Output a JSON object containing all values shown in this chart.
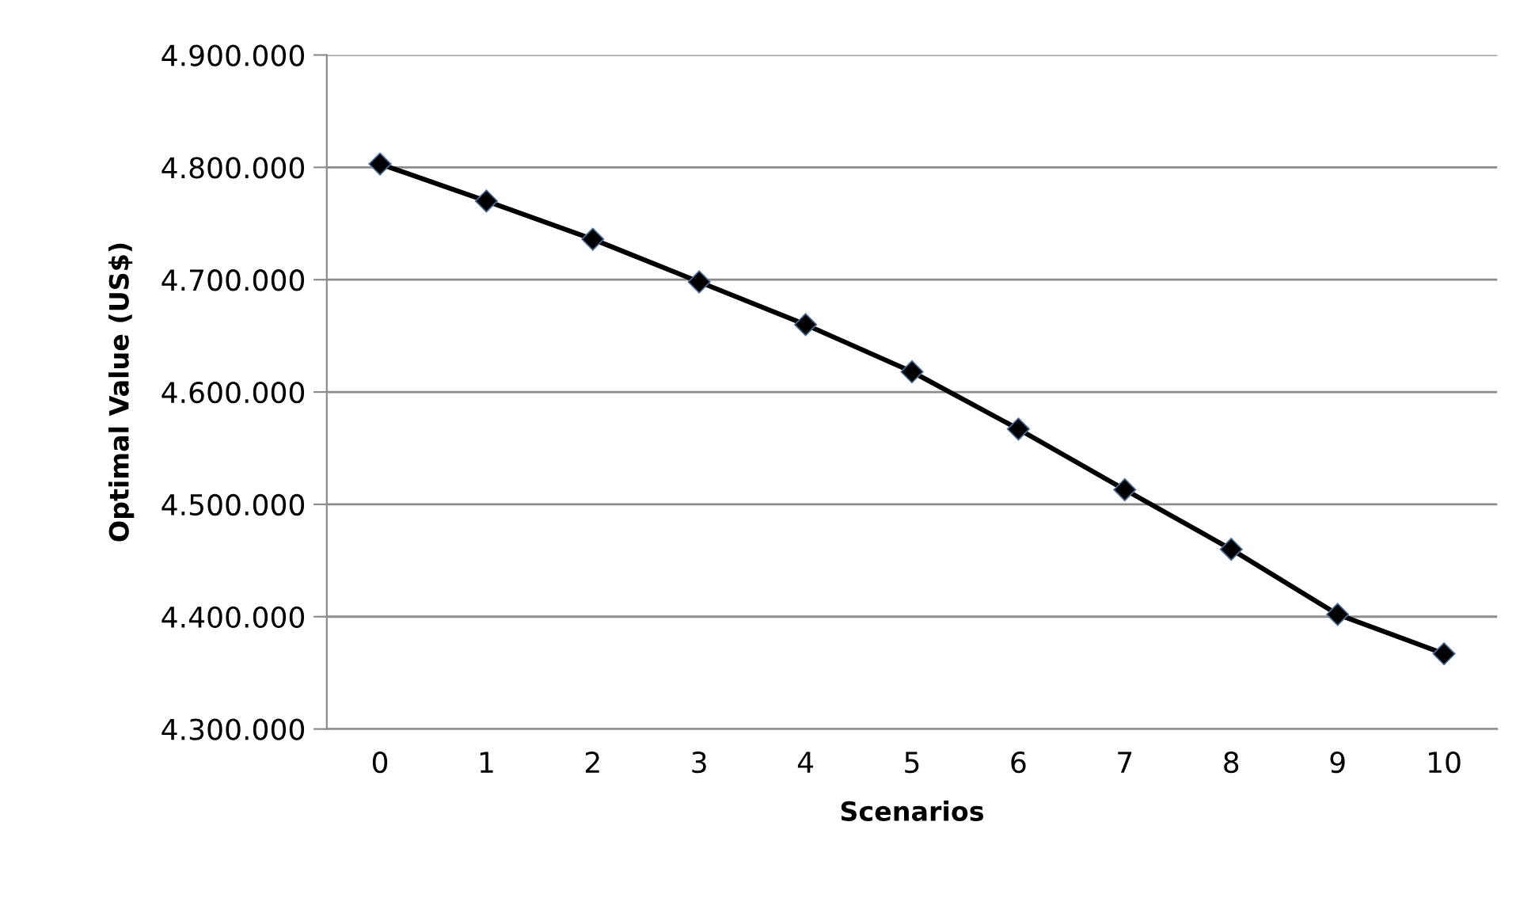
{
  "chart_data": {
    "type": "line",
    "xlabel": "Scenarios",
    "ylabel": "Optimal Value (US$)",
    "categories": [
      "0",
      "1",
      "2",
      "3",
      "4",
      "5",
      "6",
      "7",
      "8",
      "9",
      "10"
    ],
    "series": [
      {
        "color": "#000000",
        "values": [
          4803000,
          4770000,
          4736000,
          4698000,
          4660000,
          4618000,
          4567000,
          4513000,
          4460000,
          4402000,
          4367000
        ]
      }
    ],
    "ylim": [
      4300000,
      4900000
    ],
    "yticks": [
      {
        "value": 4300000,
        "label": "4.300.000"
      },
      {
        "value": 4400000,
        "label": "4.400.000"
      },
      {
        "value": 4500000,
        "label": "4.500.000"
      },
      {
        "value": 4600000,
        "label": "4.600.000"
      },
      {
        "value": 4700000,
        "label": "4.700.000"
      },
      {
        "value": 4800000,
        "label": "4.800.000"
      },
      {
        "value": 4900000,
        "label": "4.900.000"
      }
    ],
    "grid": "y",
    "marker": "diamond",
    "line_style": "solid",
    "legend": false
  }
}
